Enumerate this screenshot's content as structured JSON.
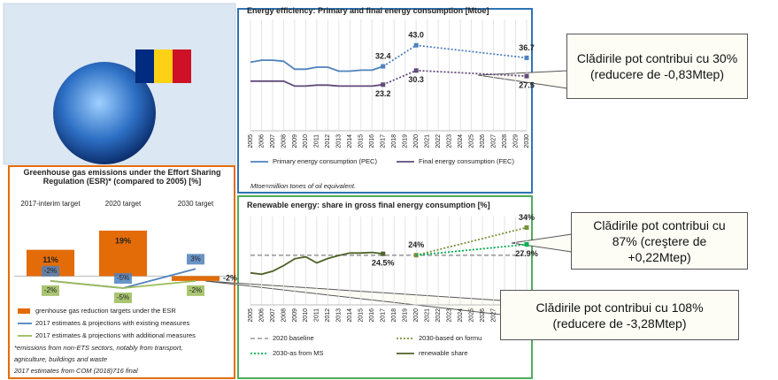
{
  "callouts": [
    {
      "text": "Clădirile pot contribui cu 30% (reducere de -0,83Mtep)"
    },
    {
      "text": "Clădirile pot contribui cu 87% (creştere de +0,22Mtep)"
    },
    {
      "text": "Clădirile pot contribui cu 108% (reducere de -3,28Mtep)"
    }
  ],
  "chart_data": [
    {
      "type": "line",
      "title": "Energy efficiency: Primary and final energy consumption [Mtoe]",
      "note": "Mtoe=million tones of oil equivalent.",
      "xlim": [
        2005,
        2030
      ],
      "xticks": [
        2005,
        2006,
        2007,
        2008,
        2009,
        2010,
        2011,
        2012,
        2013,
        2014,
        2015,
        2016,
        2017,
        2018,
        2019,
        2020,
        2021,
        2022,
        2023,
        2024,
        2025,
        2026,
        2027,
        2028,
        2029,
        2030
      ],
      "ylim": [
        0,
        56
      ],
      "grid": true,
      "series": [
        {
          "name": "Primary energy consumption (PEC)",
          "color": "#4f81bd",
          "dash": "solid",
          "label_side": "above",
          "x": [
            2005,
            2006,
            2007,
            2008,
            2009,
            2010,
            2011,
            2012,
            2013,
            2014,
            2015,
            2016,
            2017
          ],
          "values": [
            34.5,
            35.5,
            35.5,
            35,
            31,
            31,
            32,
            32,
            30,
            30,
            30.5,
            30.5,
            32.4
          ],
          "projection": {
            "dash": "dotted",
            "x": [
              2017,
              2020,
              2030
            ],
            "values": [
              32.4,
              43.0,
              36.7
            ],
            "value_labels": [
              "32.4",
              "43.0",
              "36.7"
            ]
          }
        },
        {
          "name": "Final energy consumption (FEC)",
          "color": "#604a7b",
          "dash": "solid",
          "label_side": "below",
          "x": [
            2005,
            2006,
            2007,
            2008,
            2009,
            2010,
            2011,
            2012,
            2013,
            2014,
            2015,
            2016,
            2017
          ],
          "values": [
            25,
            25,
            25,
            25,
            22.5,
            22.5,
            23,
            23,
            22.5,
            22.5,
            22.5,
            22.5,
            23.2
          ],
          "projection": {
            "dash": "dotted",
            "x": [
              2017,
              2020,
              2030
            ],
            "values": [
              23.2,
              30.3,
              27.5
            ],
            "value_labels": [
              "23.2",
              "30.3",
              "27.5"
            ]
          }
        }
      ]
    },
    {
      "type": "line",
      "title": "Renewable energy: share in gross final energy consumption  [%]",
      "xlim": [
        2005,
        2030
      ],
      "xticks": [
        2005,
        2006,
        2007,
        2008,
        2009,
        2010,
        2011,
        2012,
        2013,
        2014,
        2015,
        2016,
        2017,
        2018,
        2019,
        2020,
        2021,
        2022,
        2023,
        2024,
        2025,
        2026,
        2027,
        2028,
        2029,
        2030
      ],
      "ylim": [
        6,
        38
      ],
      "grid": true,
      "series": [
        {
          "name": "2020 baseline",
          "color": "#a6a6a6",
          "dash": "dashed",
          "label_side": "above",
          "x": [
            2005,
            2030
          ],
          "values": [
            24,
            24
          ]
        },
        {
          "name": "2030-based on formu",
          "color": "#77933c",
          "dash": "dotted",
          "label_side": "above",
          "x": [
            2020,
            2030
          ],
          "values": [
            24,
            34
          ],
          "value_labels": [
            "24%",
            "34%"
          ]
        },
        {
          "name": "2030-as from MS",
          "color": "#00b050",
          "dash": "dotted",
          "label_side": "below",
          "x": [
            2020,
            2030
          ],
          "values": [
            24,
            27.9
          ],
          "value_labels": [
            null,
            "27.9%"
          ]
        },
        {
          "name": "renewable share",
          "color": "#4f6228",
          "dash": "solid",
          "label_side": "below",
          "x": [
            2005,
            2006,
            2007,
            2008,
            2009,
            2010,
            2011,
            2012,
            2013,
            2014,
            2015,
            2016,
            2017
          ],
          "values": [
            17.6,
            17.1,
            18.2,
            20.2,
            22.7,
            23.4,
            21.2,
            22.8,
            23.9,
            24.8,
            24.8,
            25.0,
            24.5
          ],
          "value_labels": [
            null,
            null,
            null,
            null,
            null,
            null,
            null,
            null,
            null,
            null,
            null,
            null,
            "24.5%"
          ]
        }
      ]
    },
    {
      "type": "bar",
      "title": "Greenhouse gas emissions under the Effort Sharing Regulation (ESR)* (compared to 2005) [%]",
      "categories": [
        "2017-interim target",
        "2020 target",
        "2030 target"
      ],
      "bar_name": "grenhouse gas reduction targets under the ESR",
      "values": [
        11,
        19,
        -2
      ],
      "value_labels": [
        "11%",
        "19%",
        "-2%"
      ],
      "color": "#e36c09",
      "ylim": [
        -12,
        26
      ],
      "series": [
        {
          "name": "2017 estimates & projections with existing measures",
          "color": "#4f81bd",
          "label_side": "above",
          "values": [
            -2,
            -5,
            3
          ],
          "value_labels": [
            "-2%",
            "-5%",
            "3%"
          ]
        },
        {
          "name": "2017 estimates &  projections with additional measures",
          "color": "#9bbb59",
          "label_side": "below",
          "values": [
            -2,
            -5,
            -2
          ],
          "value_labels": [
            "-2%",
            "-5%",
            "-2%"
          ]
        }
      ],
      "notes": [
        "*emissions from non-ETS sectors, notably from transport,",
        "agriculture, buildings and waste",
        "2017 estimates from COM (2018)716 final"
      ]
    }
  ]
}
